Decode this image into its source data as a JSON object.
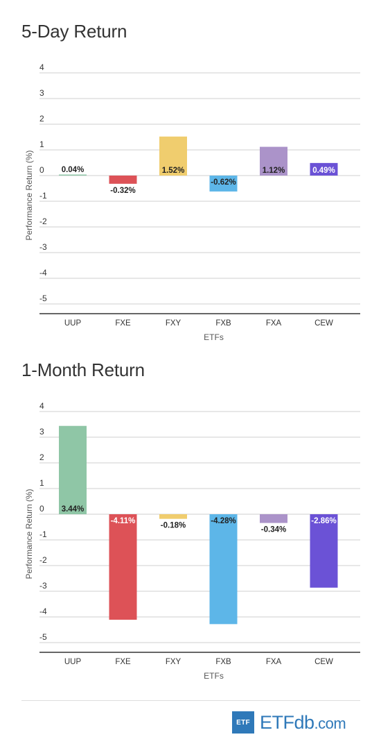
{
  "chart_data": [
    {
      "type": "bar",
      "title": "5-Day Return",
      "xlabel": "ETFs",
      "ylabel": "Performance Return (%)",
      "ylim": [
        -5,
        4
      ],
      "yticks": [
        "4",
        "3",
        "2",
        "1",
        "0",
        "-1",
        "-2",
        "-3",
        "-4",
        "-5"
      ],
      "categories": [
        "UUP",
        "FXE",
        "FXY",
        "FXB",
        "FXA",
        "CEW"
      ],
      "values": [
        0.04,
        -0.32,
        1.52,
        -0.62,
        1.12,
        0.49
      ],
      "labels": [
        "0.04%",
        "-0.32%",
        "1.52%",
        "-0.62%",
        "1.12%",
        "0.49%"
      ],
      "colors": [
        "#8fc6a6",
        "#dd5257",
        "#f0cd6e",
        "#5db6e8",
        "#ab93c9",
        "#6b52d6"
      ],
      "label_colors": [
        "#222222",
        "#222222",
        "#222222",
        "#222222",
        "#222222",
        "#ffffff"
      ],
      "grid": true
    },
    {
      "type": "bar",
      "title": "1-Month Return",
      "xlabel": "ETFs",
      "ylabel": "Performance Return (%)",
      "ylim": [
        -5,
        4
      ],
      "yticks": [
        "4",
        "3",
        "2",
        "1",
        "0",
        "-1",
        "-2",
        "-3",
        "-4",
        "-5"
      ],
      "categories": [
        "UUP",
        "FXE",
        "FXY",
        "FXB",
        "FXA",
        "CEW"
      ],
      "values": [
        3.44,
        -4.11,
        -0.18,
        -4.28,
        -0.34,
        -2.86
      ],
      "labels": [
        "3.44%",
        "-4.11%",
        "-0.18%",
        "-4.28%",
        "-0.34%",
        "-2.86%"
      ],
      "colors": [
        "#8fc6a6",
        "#dd5257",
        "#f0cd6e",
        "#5db6e8",
        "#ab93c9",
        "#6b52d6"
      ],
      "label_colors": [
        "#222222",
        "#ffffff",
        "#222222",
        "#222222",
        "#222222",
        "#ffffff"
      ],
      "grid": true
    }
  ],
  "logo": {
    "box": "ETF",
    "etf": "ETF",
    "db": "db",
    "com": ".com"
  }
}
